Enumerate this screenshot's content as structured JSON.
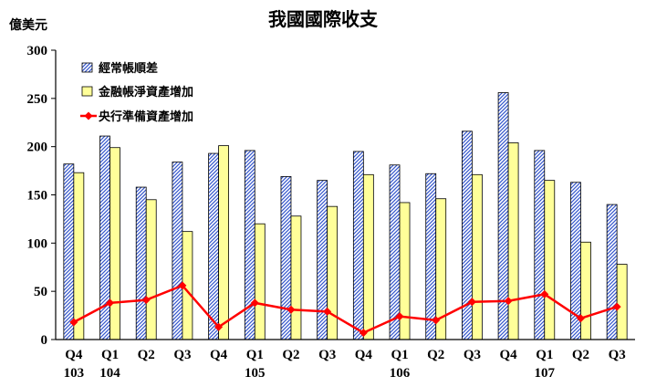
{
  "chart_data": {
    "type": "bar",
    "title": "我國國際收支",
    "ylabel": "億美元",
    "ylim": [
      0,
      300
    ],
    "yticks": [
      0,
      50,
      100,
      150,
      200,
      250,
      300
    ],
    "grid": false,
    "legend_position": "top-left",
    "categories": [
      "Q4",
      "Q1",
      "Q2",
      "Q3",
      "Q4",
      "Q1",
      "Q2",
      "Q3",
      "Q4",
      "Q1",
      "Q2",
      "Q3",
      "Q4",
      "Q1",
      "Q2",
      "Q3"
    ],
    "year_labels": [
      "103",
      "104",
      "",
      "",
      "",
      "105",
      "",
      "",
      "",
      "106",
      "",
      "",
      "",
      "107",
      "",
      ""
    ],
    "series": [
      {
        "name": "經常帳順差",
        "kind": "bar",
        "color": "#3355cc",
        "pattern": "diagonal-hatch",
        "values": [
          182,
          211,
          158,
          184,
          193,
          196,
          169,
          165,
          195,
          181,
          172,
          216,
          256,
          196,
          163,
          140
        ]
      },
      {
        "name": "金融帳淨資產增加",
        "kind": "bar",
        "color": "#ffff99",
        "values": [
          173,
          199,
          145,
          112,
          201,
          120,
          128,
          138,
          171,
          142,
          146,
          171,
          204,
          165,
          101,
          78
        ]
      },
      {
        "name": "央行準備資產增加",
        "kind": "line",
        "color": "#ff0000",
        "marker": "diamond",
        "values": [
          18,
          38,
          41,
          56,
          13,
          38,
          31,
          29,
          7,
          24,
          20,
          39,
          40,
          47,
          22,
          34
        ]
      }
    ]
  }
}
